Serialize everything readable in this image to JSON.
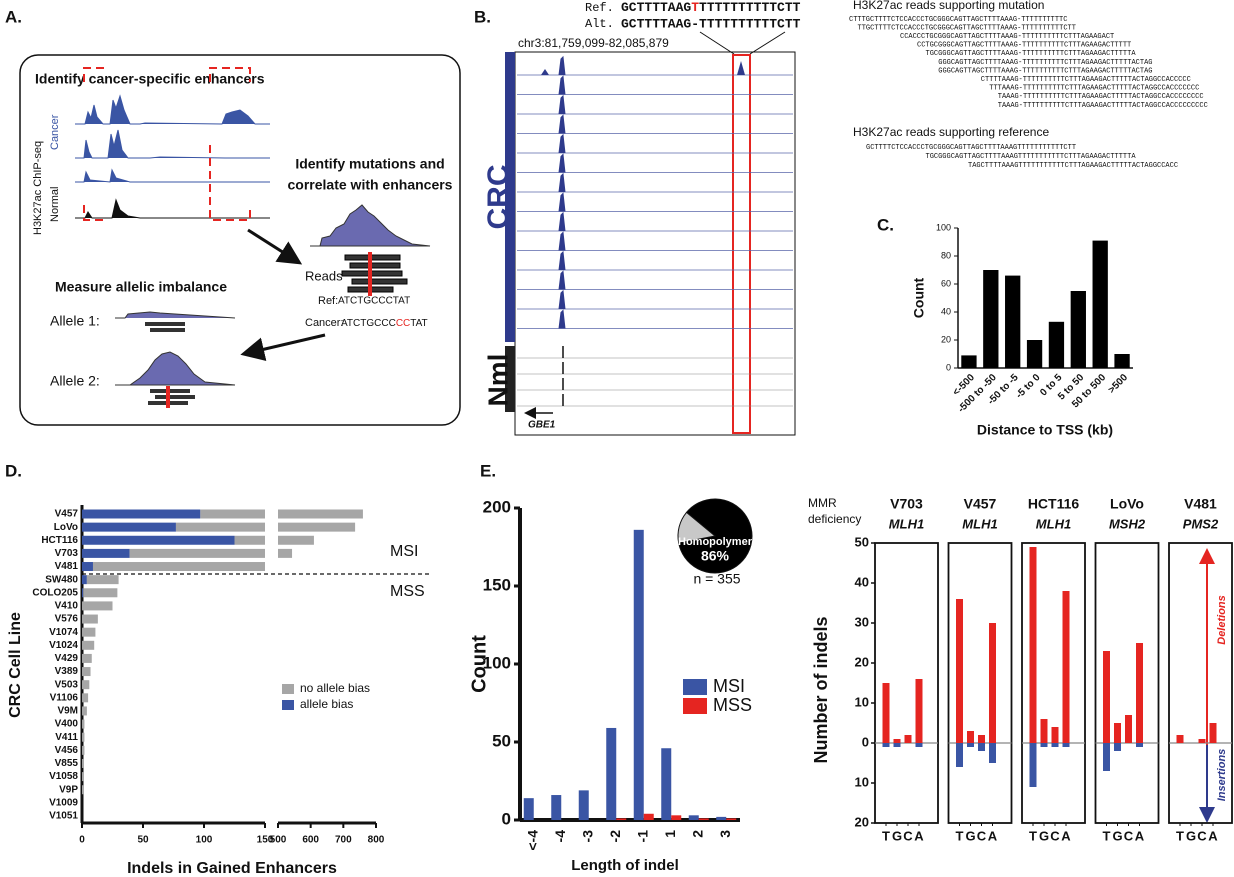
{
  "panel_labels": [
    "A.",
    "B.",
    "C.",
    "D.",
    "E."
  ],
  "panel_a": {
    "step1": "Identify cancer-specific enhancers",
    "assay": "H3K27ac ChIP-seq",
    "cancer": "Cancer",
    "normal": "Normal",
    "step2": [
      "Identify mutations and",
      "correlate with enhancers"
    ],
    "reads": "Reads",
    "ref_label": "Ref:",
    "ref_seq": "ATCTGCCCTAT",
    "cancer_label": "Cancer:",
    "cancer_seq": [
      "ATCTGCCC",
      "CC",
      "TAT"
    ],
    "step3": "Measure allelic imbalance",
    "allele1": "Allele 1:",
    "allele2": "Allele  2:"
  },
  "panel_b": {
    "ref_label": "Ref.",
    "ref_seq": [
      "GCTTTTAAG",
      "T",
      "TTTTTTTTTTCTT"
    ],
    "alt_label": "Alt.",
    "alt_seq": "GCTTTTAAG-TTTTTTTTTTCTT",
    "locus": "chr3:81,759,099-82,085,879",
    "crc": "CRC",
    "nml": "Nml",
    "gene": "GBE1",
    "mutation_title": "H3K27ac reads supporting mutation",
    "mutation_reads": [
      "CTTTGCTTTTCTCCACCCTGCGGGCAGTTAGCTTTTAAAG-TTTTTTTTTTC",
      "TTGCTTTTCTCCACCCTGCGGGCAGTTAGCTTTTAAAG-TTTTTTTTTTCTT",
      "CCACCCTGCGGGCAGTTAGCTTTTAAAG-TTTTTTTTTTCTTTAGAAGACT",
      "CCTGCGGGCAGTTAGCTTTTAAAG-TTTTTTTTTTCTTTAGAAGACTTTTT",
      "TGCGGGCAGTTAGCTTTTAAAG-TTTTTTTTTTCTTTAGAAGACTTTTTA",
      "GGGCAGTTAGCTTTTAAAG-TTTTTTTTTTCTTTAGAAGACTTTTTACTAG",
      "GGGCAGTTAGCTTTTAAAG-TTTTTTTTTTCTTTAGAAGACTTTTTACTAG",
      "CTTTTAAAG-TTTTTTTTTTCTTTAGAAGACTTTTTACTAGGCCACCCCC",
      "TTTAAAG-TTTTTTTTTTCTTTAGAAGACTTTTTACTAGGCCACCCCCCC",
      "TAAAG-TTTTTTTTTTCTTTAGAAGACTTTTTACTAGGCCACCCCCCCC",
      "TAAAG-TTTTTTTTTTCTTTAGAAGACTTTTTACTAGGCCACCCCCCCCC"
    ],
    "reference_title": "H3K27ac reads supporting reference",
    "reference_reads": [
      "GCTTTTCTCCACCCTGCGGGCAGTTAGCTTTTAAAGTTTTTTTTTTTCTT",
      "TGCGGGCAGTTAGCTTTTAAAGTTTTTTTTTTTCTTTAGAAGACTTTTTA",
      "TAGCTTTTAAAGTTTTTTTTTTTCTTTAGAAGACTTTTTACTAGGCCACC"
    ]
  },
  "mmr_panel": {
    "label": [
      "MMR",
      "deficiency"
    ],
    "ylabel": "Number of indels",
    "up_label": "Deletions",
    "down_label": "Insertions"
  },
  "chart_data": [
    {
      "type": "bar",
      "categories": [
        "<-500",
        "-500 to -50",
        "-50 to -5",
        "-5 to 0",
        "0 to 5",
        "5 to 50",
        "50 to 500",
        ">500"
      ],
      "values": [
        9,
        70,
        66,
        20,
        33,
        55,
        91,
        10
      ],
      "color": "#000000",
      "ylim": [
        0,
        100
      ],
      "yticks": [
        0,
        20,
        40,
        60,
        80,
        100
      ],
      "ylabel": "Count",
      "xlabel": "Distance to TSS (kb)"
    },
    {
      "type": "hbar_stacked",
      "categories": [
        "V457",
        "LoVo",
        "HCT116",
        "V703",
        "V481",
        "SW480",
        "COLO205",
        "V410",
        "V576",
        "V1074",
        "V1024",
        "V429",
        "V389",
        "V503",
        "V1106",
        "V9M",
        "V400",
        "V411",
        "V456",
        "V855",
        "V1058",
        "V9P",
        "V1009",
        "V1051"
      ],
      "series": [
        {
          "name": "allele bias",
          "color": "#3a55a4",
          "values": [
            97,
            77,
            125,
            39,
            9,
            4,
            1,
            0,
            0,
            0,
            0,
            0,
            0,
            0,
            0,
            0,
            0,
            0,
            0,
            0,
            0,
            0,
            0,
            0
          ]
        },
        {
          "name": "no allele bias",
          "color": "#a6a6a6",
          "values": [
            663,
            659,
            485,
            504,
            141,
            26,
            28,
            25,
            13,
            11,
            10,
            8,
            7,
            6,
            5,
            4,
            2,
            2,
            2,
            1,
            1,
            1,
            0,
            0
          ]
        }
      ],
      "xlim": [
        0,
        800
      ],
      "axis_break": [
        150,
        500
      ],
      "xticks": [
        0,
        50,
        100,
        150,
        500,
        600,
        700,
        800
      ],
      "groups": [
        "MSI",
        "MSS"
      ],
      "ylabel": "CRC Cell Line",
      "xlabel": "Indels in Gained Enhancers"
    },
    {
      "type": "bar_grouped",
      "categories": [
        "<-4",
        "-4",
        "-3",
        "-2",
        "-1",
        "1",
        "2",
        "3"
      ],
      "series": [
        {
          "name": "MSI",
          "color": "#3a55a4",
          "values": [
            14,
            16,
            19,
            59,
            186,
            46,
            3,
            2
          ]
        },
        {
          "name": "MSS",
          "color": "#e52521",
          "values": [
            0,
            0,
            0,
            1,
            4,
            3,
            1,
            1
          ]
        }
      ],
      "ylim": [
        0,
        200
      ],
      "yticks": [
        0,
        50,
        100,
        150,
        200
      ],
      "ylabel": "Count",
      "xlabel": "Length of indel"
    },
    {
      "type": "pie",
      "categories": [
        "Homopolymer",
        null
      ],
      "values": [
        86,
        14
      ],
      "value_labels": [
        "86%",
        null
      ],
      "colors": [
        "#000000",
        "#c8c8c8"
      ],
      "annotation": "n = 355"
    },
    {
      "type": "mmr_bar",
      "title": "V703",
      "subtitle": "MLH1",
      "categories": [
        "T",
        "G",
        "C",
        "A"
      ],
      "series": [
        {
          "color": "#e52521",
          "values": [
            15,
            1,
            2,
            16
          ]
        },
        {
          "color": "#3a55a4",
          "values": [
            -1,
            -1,
            0,
            -1
          ]
        }
      ],
      "ylim": [
        -20,
        50
      ],
      "yticks": [
        50,
        40,
        30,
        20,
        10,
        0,
        {
          "value": -10,
          "label": "10"
        },
        {
          "value": -20,
          "label": "20"
        }
      ]
    },
    {
      "type": "mmr_bar",
      "title": "V457",
      "subtitle": "MLH1",
      "categories": [
        "T",
        "G",
        "C",
        "A"
      ],
      "series": [
        {
          "color": "#e52521",
          "values": [
            36,
            3,
            2,
            30
          ]
        },
        {
          "color": "#3a55a4",
          "values": [
            -6,
            -1,
            -2,
            -5
          ]
        }
      ],
      "ylim": [
        -20,
        50
      ]
    },
    {
      "type": "mmr_bar",
      "title": "HCT116",
      "subtitle": "MLH1",
      "categories": [
        "T",
        "G",
        "C",
        "A"
      ],
      "series": [
        {
          "color": "#e52521",
          "values": [
            49,
            6,
            4,
            38
          ]
        },
        {
          "color": "#3a55a4",
          "values": [
            -11,
            -1,
            -1,
            -1
          ]
        }
      ],
      "ylim": [
        -20,
        50
      ]
    },
    {
      "type": "mmr_bar",
      "title": "LoVo",
      "subtitle": "MSH2",
      "categories": [
        "T",
        "G",
        "C",
        "A"
      ],
      "series": [
        {
          "color": "#e52521",
          "values": [
            23,
            5,
            7,
            25
          ]
        },
        {
          "color": "#3a55a4",
          "values": [
            -7,
            -2,
            0,
            -1
          ]
        }
      ],
      "ylim": [
        -20,
        50
      ]
    },
    {
      "type": "mmr_bar",
      "title": "V481",
      "subtitle": "PMS2",
      "categories": [
        "T",
        "G",
        "C",
        "A"
      ],
      "series": [
        {
          "color": "#e52521",
          "values": [
            2,
            0,
            1,
            5
          ]
        },
        {
          "color": "#3a55a4",
          "values": [
            0,
            0,
            0,
            0
          ]
        }
      ],
      "ylim": [
        -20,
        50
      ]
    }
  ]
}
